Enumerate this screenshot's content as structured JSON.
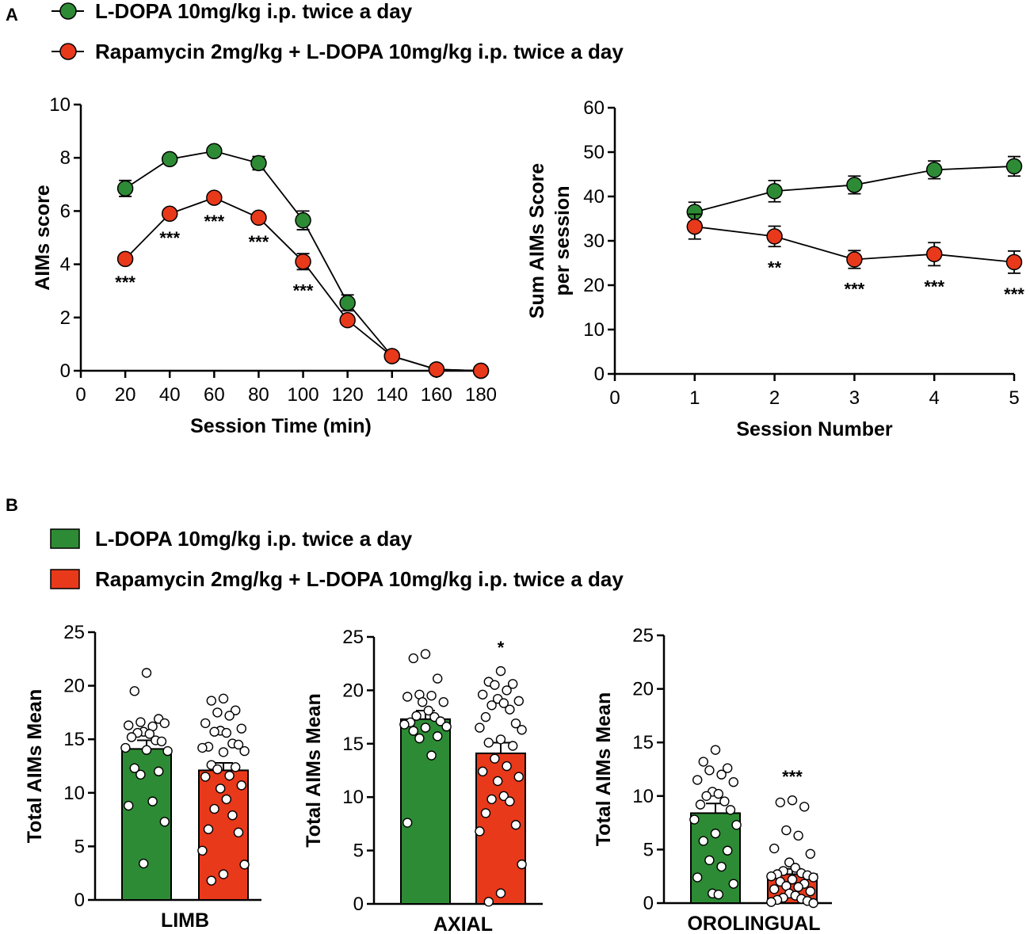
{
  "colors": {
    "green": "#2e8b35",
    "red": "#e8391b",
    "axis": "#000000",
    "dot_fill": "#ffffff"
  },
  "panel_labels": {
    "a": "A",
    "b": "B"
  },
  "legend_a": [
    {
      "label": "L-DOPA 10mg/kg i.p. twice a day",
      "marker": "circle",
      "color": "#2e8b35"
    },
    {
      "label": "Rapamycin 2mg/kg + L-DOPA 10mg/kg i.p. twice a day",
      "marker": "circle",
      "color": "#e8391b"
    }
  ],
  "legend_b": [
    {
      "label": "L-DOPA 10mg/kg i.p. twice a day",
      "marker": "square",
      "color": "#2e8b35"
    },
    {
      "label": "Rapamycin 2mg/kg + L-DOPA 10mg/kg i.p. twice a day",
      "marker": "square",
      "color": "#e8391b"
    }
  ],
  "chart_data": [
    {
      "type": "line",
      "title": "",
      "xlabel": "Session Time (min)",
      "ylabel": "AIMs score",
      "xlim": [
        0,
        180
      ],
      "ylim": [
        0,
        10
      ],
      "xticks": [
        0,
        20,
        40,
        60,
        80,
        100,
        120,
        140,
        160,
        180
      ],
      "yticks": [
        0,
        2,
        4,
        6,
        8,
        10
      ],
      "x": [
        20,
        40,
        60,
        80,
        100,
        120,
        140,
        160,
        180
      ],
      "series": [
        {
          "name": "L-DOPA 10mg/kg i.p. twice a day",
          "color": "#2e8b35",
          "values": [
            6.85,
            7.95,
            8.25,
            7.8,
            5.65,
            2.55,
            0.55,
            0.05,
            0.0
          ],
          "err": [
            0.3,
            0.12,
            0.12,
            0.25,
            0.35,
            0.3,
            0.05,
            0.0,
            0.0
          ]
        },
        {
          "name": "Rapamycin 2mg/kg + L-DOPA 10mg/kg i.p. twice a day",
          "color": "#e8391b",
          "values": [
            4.2,
            5.9,
            6.5,
            5.75,
            4.1,
            1.9,
            0.55,
            0.05,
            0.0
          ],
          "err": [
            0.1,
            0.12,
            0.1,
            0.12,
            0.3,
            0.1,
            0.05,
            0.0,
            0.0
          ]
        }
      ],
      "annotations": [
        {
          "x": 20,
          "label": "***"
        },
        {
          "x": 40,
          "label": "***"
        },
        {
          "x": 60,
          "label": "***"
        },
        {
          "x": 80,
          "label": "***"
        },
        {
          "x": 100,
          "label": "***"
        }
      ]
    },
    {
      "type": "line",
      "title": "",
      "xlabel": "Session Number",
      "ylabel": [
        "Sum AIMs Score",
        "per session"
      ],
      "xlim": [
        0,
        5
      ],
      "ylim": [
        0,
        60
      ],
      "xticks": [
        0,
        1,
        2,
        3,
        4,
        5
      ],
      "yticks": [
        0,
        10,
        20,
        30,
        40,
        50,
        60
      ],
      "x": [
        1,
        2,
        3,
        4,
        5
      ],
      "series": [
        {
          "name": "L-DOPA 10mg/kg i.p. twice a day",
          "color": "#2e8b35",
          "values": [
            36.5,
            41.2,
            42.6,
            46.0,
            46.8
          ],
          "err": [
            2.2,
            2.4,
            2.0,
            2.0,
            2.2
          ]
        },
        {
          "name": "Rapamycin 2mg/kg + L-DOPA 10mg/kg i.p. twice a day",
          "color": "#e8391b",
          "values": [
            33.2,
            31.0,
            25.8,
            27.0,
            25.2
          ],
          "err": [
            2.8,
            2.3,
            2.0,
            2.6,
            2.5
          ]
        }
      ],
      "annotations": [
        {
          "x": 2,
          "label": "**"
        },
        {
          "x": 3,
          "label": "***"
        },
        {
          "x": 4,
          "label": "***"
        },
        {
          "x": 5,
          "label": "***"
        }
      ]
    },
    {
      "type": "bar",
      "category": "LIMB",
      "ylabel": "Total AIMs Mean",
      "ylim": [
        0,
        25
      ],
      "yticks": [
        0,
        5,
        10,
        15,
        20,
        25
      ],
      "significance": "",
      "bars": [
        {
          "name": "L-DOPA 10mg/kg i.p. twice a day",
          "color": "#2e8b35",
          "mean": 14.1,
          "sem": 0.8,
          "points": [
            21.2,
            19.5,
            16.9,
            16.6,
            16.2,
            16.3,
            16.5,
            15.7,
            15.5,
            15.6,
            14.9,
            15.2,
            14.8,
            14.2,
            13.9,
            14.0,
            12.3,
            12.0,
            11.7,
            9.2,
            8.8,
            7.3,
            3.4
          ]
        },
        {
          "name": "Rapamycin 2mg/kg + L-DOPA 10mg/kg i.p. twice a day",
          "color": "#e8391b",
          "mean": 12.1,
          "sem": 0.7,
          "points": [
            18.8,
            18.6,
            17.7,
            17.5,
            17.2,
            16.5,
            16.0,
            15.8,
            15.6,
            15.7,
            14.6,
            14.3,
            14.5,
            14.2,
            13.9,
            13.8,
            12.6,
            12.4,
            12.2,
            11.6,
            11.5,
            10.7,
            10.4,
            9.4,
            8.5,
            7.9,
            6.6,
            6.3,
            4.6,
            3.3,
            2.4,
            1.8
          ]
        }
      ]
    },
    {
      "type": "bar",
      "category": "AXIAL",
      "ylabel": "Total AIMs Mean",
      "ylim": [
        0,
        25
      ],
      "yticks": [
        0,
        5,
        10,
        15,
        20,
        25
      ],
      "significance": "*",
      "bars": [
        {
          "name": "L-DOPA 10mg/kg i.p. twice a day",
          "color": "#2e8b35",
          "mean": 17.3,
          "sem": 0.8,
          "points": [
            23.4,
            23.0,
            21.1,
            19.6,
            19.5,
            19.4,
            18.9,
            18.9,
            18.1,
            17.6,
            17.5,
            17.0,
            17.1,
            16.8,
            16.6,
            16.5,
            16.2,
            15.7,
            15.5,
            13.9,
            7.6
          ]
        },
        {
          "name": "Rapamycin 2mg/kg + L-DOPA 10mg/kg i.p. twice a day",
          "color": "#e8391b",
          "mean": 14.1,
          "sem": 1.0,
          "points": [
            21.8,
            20.8,
            20.6,
            20.5,
            20.0,
            19.6,
            19.0,
            19.2,
            18.8,
            18.6,
            18.2,
            17.5,
            16.9,
            16.5,
            16.3,
            15.4,
            15.1,
            14.8,
            13.6,
            12.9,
            12.4,
            11.9,
            11.5,
            10.1,
            9.8,
            9.6,
            8.5,
            7.4,
            6.8,
            3.7,
            1.0,
            0.2
          ]
        }
      ]
    },
    {
      "type": "bar",
      "category": "OROLINGUAL",
      "ylabel": "Total AIMs Mean",
      "ylim": [
        0,
        25
      ],
      "yticks": [
        0,
        5,
        10,
        15,
        20,
        25
      ],
      "significance": "***",
      "bars": [
        {
          "name": "L-DOPA 10mg/kg i.p. twice a day",
          "color": "#2e8b35",
          "mean": 8.4,
          "sem": 0.9,
          "points": [
            14.3,
            13.2,
            12.6,
            12.4,
            12.0,
            11.5,
            11.3,
            10.4,
            10.2,
            10.0,
            9.5,
            9.2,
            8.7,
            7.8,
            7.3,
            6.5,
            5.8,
            4.9,
            4.0,
            3.4,
            2.4,
            1.8,
            0.9,
            0.8
          ]
        },
        {
          "name": "Rapamycin 2mg/kg + L-DOPA 10mg/kg i.p. twice a day",
          "color": "#e8391b",
          "mean": 2.7,
          "sem": 0.5,
          "points": [
            9.6,
            9.4,
            9.0,
            6.8,
            6.3,
            5.1,
            4.6,
            3.8,
            3.3,
            3.0,
            2.8,
            2.7,
            2.6,
            2.5,
            2.4,
            2.2,
            2.0,
            1.8,
            1.6,
            1.5,
            1.3,
            1.1,
            0.9,
            0.7,
            0.5,
            0.4,
            0.3,
            0.2,
            0.1,
            0.0
          ]
        }
      ]
    }
  ]
}
